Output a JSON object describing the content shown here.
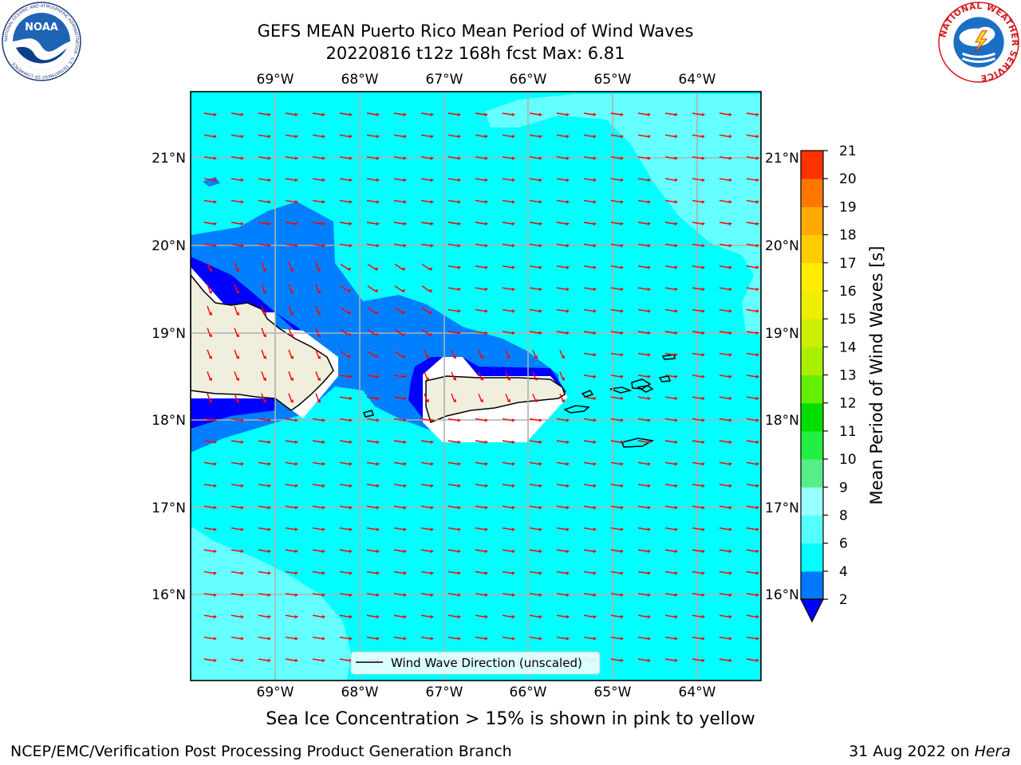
{
  "title": {
    "line1": "GEFS MEAN Puerto Rico Mean Period of Wind Waves",
    "line2": "20220816 t12z 168h fcst   Max: 6.81"
  },
  "map": {
    "lon_labels": [
      "69°W",
      "68°W",
      "67°W",
      "66°W",
      "65°W",
      "64°W"
    ],
    "lat_labels": [
      "21°N",
      "20°N",
      "19°N",
      "18°N",
      "17°N",
      "16°N"
    ],
    "legend_label": "Wind Wave Direction (unscaled)",
    "arrow_color": "#ff0000",
    "fill_colors": {
      "band_4_6": "#00ffff",
      "band_6_8": "#66ffff",
      "band_2_4": "#0080ff",
      "band_below_2": "#0000ff",
      "land": "#f0eedc"
    }
  },
  "colorbar": {
    "label": "Mean Period of Wind Waves [s]",
    "ticks": [
      "2",
      "4",
      "6",
      "8",
      "9",
      "10",
      "11",
      "12",
      "13",
      "14",
      "15",
      "16",
      "17",
      "18",
      "19",
      "20",
      "21"
    ],
    "colors": [
      "#0078ff",
      "#00ffff",
      "#55ffff",
      "#99ffff",
      "#55ee88",
      "#22ee44",
      "#00dd00",
      "#66ee00",
      "#aaee00",
      "#ccee00",
      "#eeee00",
      "#ffee00",
      "#ffcc00",
      "#ffaa00",
      "#ff7700",
      "#ff3300",
      "#ff0000"
    ],
    "extend_color": "#0000ff"
  },
  "footer": {
    "sea_ice": "Sea Ice Concentration > 15% is shown in pink to yellow",
    "credit": "NCEP/EMC/Verification Post Processing Product Generation Branch",
    "date": "31 Aug 2022 on",
    "host": "Hera"
  },
  "logos": {
    "noaa_text": "NOAA",
    "noaa_ring": "NATIONAL OCEANIC AND ATMOSPHERIC ADMINISTRATION · U.S. DEPARTMENT OF COMMERCE",
    "nws_ring": "NATIONAL WEATHER SERVICE"
  }
}
